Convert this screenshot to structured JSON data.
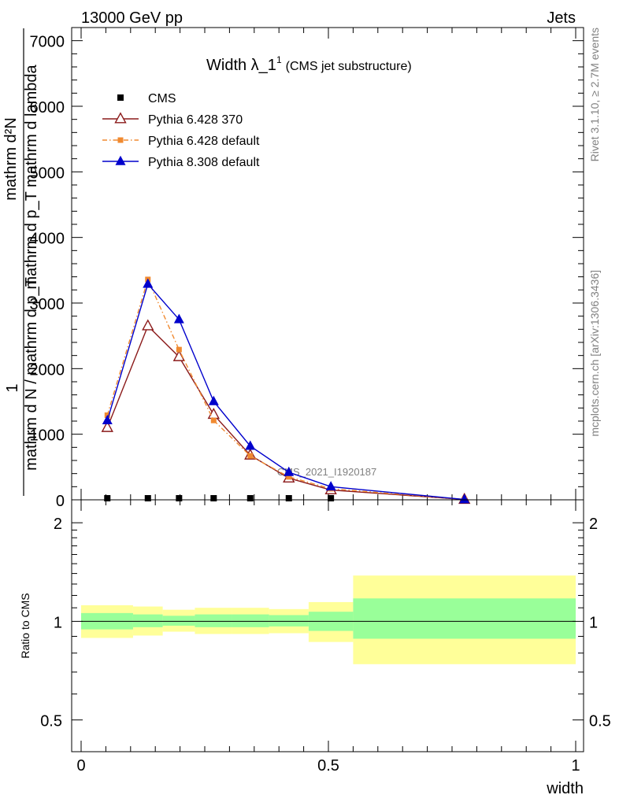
{
  "header": {
    "left": "13000 GeV pp",
    "right": "Jets"
  },
  "side_labels": {
    "rivet": "Rivet 3.1.10, ≥ 2.7M events",
    "mcplots": "mcplots.cern.ch [arXiv:1306.3436]"
  },
  "chart_data": [
    {
      "type": "line",
      "title": "Width λ_1",
      "title_sup": "1",
      "title_note": "(CMS jet substructure)",
      "watermark": "CMS_2021_I1920187",
      "ylabel_numerator": "mathrm d²N",
      "ylabel_numerator_2": "mathrm d p_T mathrm d lambda",
      "ylabel_denominator": "mathrm d N / mathrm d p_T",
      "ylabel_one": "1",
      "xlim": [
        0,
        1
      ],
      "ylim": [
        0,
        7200
      ],
      "y_ticks": [
        0,
        1000,
        2000,
        3000,
        4000,
        5000,
        6000,
        7000
      ],
      "y_tick_labels": [
        "0",
        "1000",
        "2000",
        "3000",
        "4000",
        "5000",
        "6000",
        "7000"
      ],
      "x_ticks_minor": [
        0.05,
        0.1,
        0.15,
        0.2,
        0.25,
        0.3,
        0.35,
        0.4,
        0.45,
        0.55,
        0.6,
        0.65,
        0.7,
        0.75,
        0.8,
        0.85,
        0.9,
        0.95
      ],
      "legend_position": "top-left",
      "series": [
        {
          "name": "CMS",
          "color": "#000000",
          "marker": "filled-square",
          "x": [
            0.053,
            0.135,
            0.198,
            0.268,
            0.342,
            0.42,
            0.505
          ],
          "y": [
            0,
            0,
            0,
            0,
            0,
            0,
            0
          ]
        },
        {
          "name": "Pythia 6.428 370",
          "color": "#8b1a1a",
          "marker": "open-triangle",
          "line": "solid",
          "x": [
            0.053,
            0.135,
            0.198,
            0.268,
            0.342,
            0.42,
            0.505,
            0.775
          ],
          "y": [
            1100,
            2650,
            2180,
            1300,
            680,
            330,
            150,
            5
          ]
        },
        {
          "name": "Pythia 6.428 default",
          "color": "#f08a30",
          "marker": "filled-square",
          "line": "dashdot",
          "x": [
            0.053,
            0.135,
            0.198,
            0.268,
            0.342,
            0.42,
            0.505,
            0.775
          ],
          "y": [
            1290,
            3360,
            2290,
            1210,
            670,
            350,
            170,
            5
          ]
        },
        {
          "name": "Pythia 8.308 default",
          "color": "#0000cc",
          "marker": "filled-triangle",
          "line": "solid",
          "x": [
            0.053,
            0.135,
            0.198,
            0.268,
            0.342,
            0.42,
            0.505,
            0.775
          ],
          "y": [
            1210,
            3290,
            2750,
            1500,
            820,
            420,
            200,
            5
          ]
        }
      ]
    },
    {
      "type": "area",
      "ylabel": "Ratio to CMS",
      "xlabel": "width",
      "xlim": [
        0,
        1
      ],
      "ylim": [
        0.4,
        2.35
      ],
      "y_scale": "log",
      "y_ticks": [
        0.5,
        1,
        2
      ],
      "y_tick_labels": [
        "0.5",
        "1",
        "2"
      ],
      "x_ticks": [
        0,
        0.5,
        1
      ],
      "x_tick_labels": [
        "0",
        "0.5",
        "1"
      ],
      "reference_line": 1,
      "bands": [
        {
          "x0": 0.0,
          "x1": 0.105,
          "inner": [
            0.945,
            1.06
          ],
          "outer": [
            0.89,
            1.12
          ]
        },
        {
          "x0": 0.105,
          "x1": 0.165,
          "inner": [
            0.96,
            1.05
          ],
          "outer": [
            0.905,
            1.11
          ]
        },
        {
          "x0": 0.165,
          "x1": 0.23,
          "inner": [
            0.97,
            1.04
          ],
          "outer": [
            0.93,
            1.085
          ]
        },
        {
          "x0": 0.23,
          "x1": 0.305,
          "inner": [
            0.96,
            1.05
          ],
          "outer": [
            0.915,
            1.1
          ]
        },
        {
          "x0": 0.305,
          "x1": 0.38,
          "inner": [
            0.96,
            1.05
          ],
          "outer": [
            0.915,
            1.1
          ]
        },
        {
          "x0": 0.38,
          "x1": 0.46,
          "inner": [
            0.965,
            1.045
          ],
          "outer": [
            0.92,
            1.09
          ]
        },
        {
          "x0": 0.46,
          "x1": 0.55,
          "inner": [
            0.935,
            1.07
          ],
          "outer": [
            0.865,
            1.145
          ]
        },
        {
          "x0": 0.55,
          "x1": 1.0,
          "inner": [
            0.885,
            1.175
          ],
          "outer": [
            0.74,
            1.38
          ]
        }
      ],
      "band_colors": {
        "inner": "#99ff99",
        "outer": "#ffff99"
      }
    }
  ]
}
